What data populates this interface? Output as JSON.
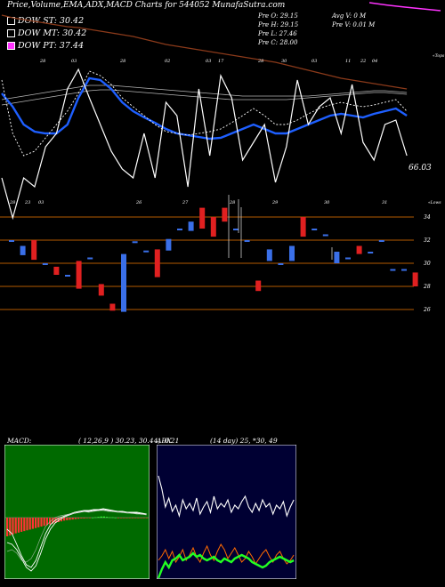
{
  "header": {
    "title": "Price,Volume,EMA,ADX,MACD Charts for 544052  MunafaSutra.com"
  },
  "dow": [
    {
      "label": "DOW ST: 30.42",
      "color": "#ffffff"
    },
    {
      "label": "DOW MT: 30.42",
      "color": "#ffffff"
    },
    {
      "label": "DOW PT: 37.44",
      "color": "#ff33ff"
    }
  ],
  "stats": {
    "pre_o": "Pre  O: 29.15",
    "pre_h": "Pre  H: 29.15",
    "pre_l": "Pre  L: 27.46",
    "pre_c": "Pre  C: 28.00",
    "avg_v": "Avg V: 0  M",
    "pre_v": "Pre  V: 0.01 M"
  },
  "upper": {
    "last_value": "66.03",
    "top_label": "«Tops",
    "low_label": "«Lows",
    "top_dates": [
      "28",
      "03",
      "28",
      "02",
      "03",
      "17",
      "28",
      "30",
      "03",
      "11",
      "22",
      "04"
    ],
    "low_dates": [
      "28",
      "23",
      "03",
      "26",
      "27",
      "28",
      "29",
      "30",
      "31"
    ]
  },
  "chart_data": [
    {
      "type": "candlestick",
      "title": "Price",
      "ylim": [
        25,
        35
      ],
      "y_ticks": [
        26,
        28,
        30,
        32,
        34
      ],
      "y_tick_labels": [
        "26",
        "28",
        "30",
        "32",
        "34"
      ],
      "candles": [
        {
          "o": 32.0,
          "c": 32.0
        },
        {
          "o": 30.7,
          "c": 31.5
        },
        {
          "o": 32.0,
          "c": 30.3
        },
        {
          "o": 30.0,
          "c": 30.0
        },
        {
          "o": 29.7,
          "c": 29.0
        },
        {
          "o": 29.0,
          "c": 29.0
        },
        {
          "o": 30.2,
          "c": 27.8
        },
        {
          "o": 30.5,
          "c": 30.5
        },
        {
          "o": 28.2,
          "c": 27.2
        },
        {
          "o": 26.5,
          "c": 25.9
        },
        {
          "o": 25.8,
          "c": 30.8
        },
        {
          "o": 31.9,
          "c": 31.9
        },
        {
          "o": 31.1,
          "c": 31.1
        },
        {
          "o": 31.2,
          "c": 28.8
        },
        {
          "o": 31.1,
          "c": 32.1
        },
        {
          "o": 33.0,
          "c": 33.0
        },
        {
          "o": 32.8,
          "c": 33.6
        },
        {
          "o": 34.8,
          "c": 33.0
        },
        {
          "o": 34.0,
          "c": 32.3
        },
        {
          "o": 34.8,
          "c": 33.6
        },
        {
          "o": 33.0,
          "c": 33.0
        },
        {
          "o": 32.0,
          "c": 32.0
        },
        {
          "o": 28.5,
          "c": 27.6
        },
        {
          "o": 30.2,
          "c": 31.2
        },
        {
          "o": 30.0,
          "c": 30.0
        },
        {
          "o": 30.2,
          "c": 31.5
        },
        {
          "o": 34.0,
          "c": 32.3
        },
        {
          "o": 33.0,
          "c": 33.0
        },
        {
          "o": 32.5,
          "c": 32.5
        },
        {
          "o": 30.0,
          "c": 31.0
        },
        {
          "o": 30.5,
          "c": 30.5
        },
        {
          "o": 31.5,
          "c": 30.8
        },
        {
          "o": 31.0,
          "c": 31.0
        },
        {
          "o": 32.0,
          "c": 32.0
        },
        {
          "o": 29.5,
          "c": 29.5
        },
        {
          "o": 29.5,
          "c": 29.5
        },
        {
          "o": 29.2,
          "c": 28.0
        }
      ]
    },
    {
      "type": "line",
      "title": "MACD",
      "header": "MACD:",
      "params": "( 12,26,9 ) 30.23,  30.44,  -0.21"
    },
    {
      "type": "line",
      "title": "ADX",
      "header": "ADX",
      "params": "(14  day) 25,  *30,  49"
    }
  ],
  "colors": {
    "up": "#3a6fe8",
    "down": "#e02020",
    "ema_fast": "#1e5fff",
    "ema_slow": "#8b3a1a",
    "support": "#b35a00",
    "macd_bg": "#006a00",
    "adx_bg": "#000033",
    "neg_green": "#22ff22",
    "neg_orange": "#ff6a00"
  }
}
